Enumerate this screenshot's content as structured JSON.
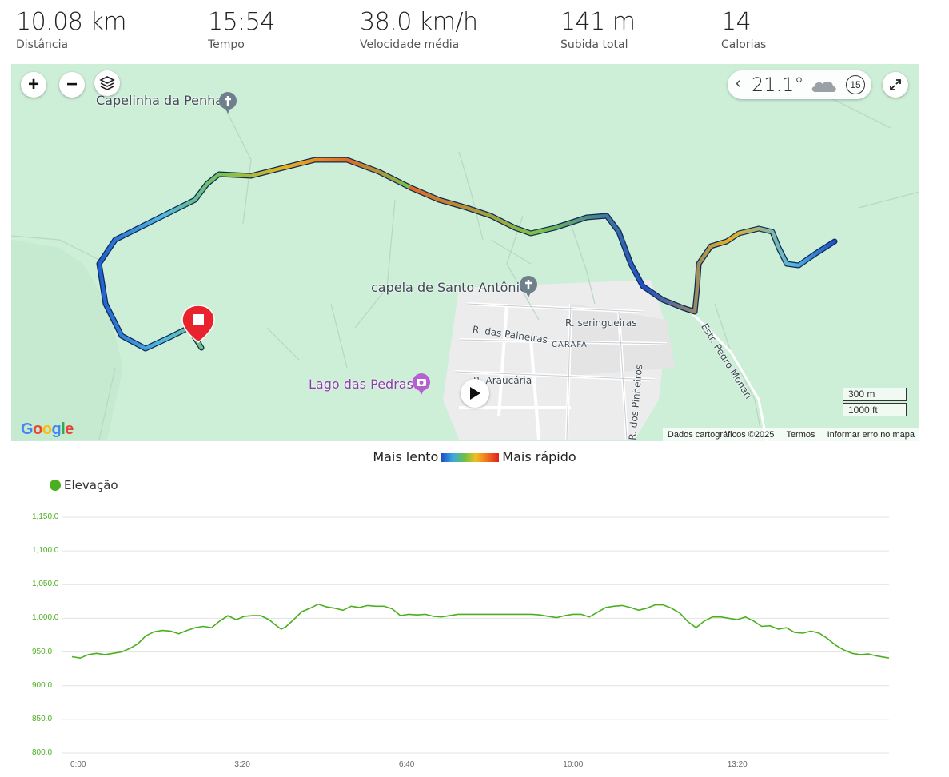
{
  "stats": [
    {
      "value": "10.08 km",
      "label": "Distância"
    },
    {
      "value": "15:54",
      "label": "Tempo"
    },
    {
      "value": "38.0 km/h",
      "label": "Velocidade média"
    },
    {
      "value": "141 m",
      "label": "Subida total"
    },
    {
      "value": "14",
      "label": "Calorias"
    }
  ],
  "map": {
    "zoom_in": "+",
    "zoom_out": "−",
    "layers_icon": "layers-icon",
    "weather": {
      "chevron": "‹",
      "temp": "21.1°",
      "aqi": "15"
    },
    "pois": {
      "capelinha": "Capelinha da Penha",
      "capela": "capela de Santo Antônio",
      "lago": "Lago das Pedras"
    },
    "streets": {
      "seringueiras": "R. seringueiras",
      "paineiras": "R. das Paineiras",
      "carafa": "CARAFA",
      "araucaria": "R. Araucária",
      "pinheiros": "R. dos Pinheiros",
      "pedro_monari": "Estr. Pedro Monari"
    },
    "scale_metric": "300 m",
    "scale_imperial": "1000 ft",
    "google_logo": "Google",
    "attribution": {
      "data": "Dados cartográficos ©2025",
      "terms": "Termos",
      "report": "Informar erro no mapa"
    }
  },
  "speed_legend": {
    "slow": "Mais lento",
    "fast": "Mais rápido"
  },
  "chart_data": {
    "type": "line",
    "series": [
      {
        "name": "Elevação",
        "color": "#4caf1f"
      }
    ],
    "x_ticks": [
      "0:00",
      "3:20",
      "6:40",
      "10:00",
      "13:20"
    ],
    "y_ticks": [
      "1,150.0",
      "1,100.0",
      "1,050.0",
      "1,000.0",
      "950.0",
      "900.0",
      "850.0",
      "800.0"
    ],
    "ylim": [
      800,
      1150
    ],
    "xlim_seconds": [
      0,
      954
    ],
    "points": [
      [
        0,
        943
      ],
      [
        10,
        941
      ],
      [
        20,
        946
      ],
      [
        30,
        948
      ],
      [
        40,
        946
      ],
      [
        50,
        948
      ],
      [
        60,
        950
      ],
      [
        70,
        955
      ],
      [
        80,
        962
      ],
      [
        90,
        974
      ],
      [
        100,
        980
      ],
      [
        110,
        982
      ],
      [
        120,
        981
      ],
      [
        130,
        977
      ],
      [
        140,
        982
      ],
      [
        150,
        986
      ],
      [
        160,
        988
      ],
      [
        170,
        986
      ],
      [
        180,
        996
      ],
      [
        190,
        1004
      ],
      [
        200,
        998
      ],
      [
        210,
        1003
      ],
      [
        220,
        1004
      ],
      [
        230,
        1004
      ],
      [
        240,
        998
      ],
      [
        250,
        988
      ],
      [
        255,
        984
      ],
      [
        260,
        987
      ],
      [
        270,
        998
      ],
      [
        280,
        1010
      ],
      [
        290,
        1015
      ],
      [
        300,
        1021
      ],
      [
        310,
        1017
      ],
      [
        320,
        1015
      ],
      [
        330,
        1012
      ],
      [
        340,
        1018
      ],
      [
        350,
        1016
      ],
      [
        360,
        1019
      ],
      [
        370,
        1018
      ],
      [
        380,
        1018
      ],
      [
        390,
        1014
      ],
      [
        400,
        1004
      ],
      [
        410,
        1006
      ],
      [
        420,
        1005
      ],
      [
        430,
        1006
      ],
      [
        440,
        1003
      ],
      [
        450,
        1002
      ],
      [
        460,
        1004
      ],
      [
        470,
        1006
      ],
      [
        480,
        1006
      ],
      [
        500,
        1006
      ],
      [
        520,
        1006
      ],
      [
        540,
        1006
      ],
      [
        560,
        1006
      ],
      [
        570,
        1005
      ],
      [
        580,
        1003
      ],
      [
        590,
        1001
      ],
      [
        600,
        1004
      ],
      [
        610,
        1006
      ],
      [
        620,
        1006
      ],
      [
        630,
        1002
      ],
      [
        640,
        1009
      ],
      [
        650,
        1016
      ],
      [
        660,
        1018
      ],
      [
        670,
        1019
      ],
      [
        680,
        1016
      ],
      [
        690,
        1012
      ],
      [
        700,
        1015
      ],
      [
        710,
        1020
      ],
      [
        720,
        1020
      ],
      [
        730,
        1015
      ],
      [
        740,
        1008
      ],
      [
        750,
        995
      ],
      [
        760,
        986
      ],
      [
        770,
        996
      ],
      [
        780,
        1002
      ],
      [
        790,
        1002
      ],
      [
        800,
        1000
      ],
      [
        810,
        998
      ],
      [
        820,
        1002
      ],
      [
        830,
        996
      ],
      [
        840,
        988
      ],
      [
        850,
        989
      ],
      [
        860,
        984
      ],
      [
        870,
        986
      ],
      [
        880,
        979
      ],
      [
        890,
        978
      ],
      [
        900,
        981
      ],
      [
        910,
        978
      ],
      [
        920,
        970
      ],
      [
        930,
        960
      ],
      [
        940,
        953
      ],
      [
        950,
        948
      ],
      [
        960,
        946
      ],
      [
        970,
        947
      ],
      [
        980,
        944
      ],
      [
        990,
        942
      ],
      [
        995,
        941
      ]
    ],
    "x_max_seconds": 995
  }
}
